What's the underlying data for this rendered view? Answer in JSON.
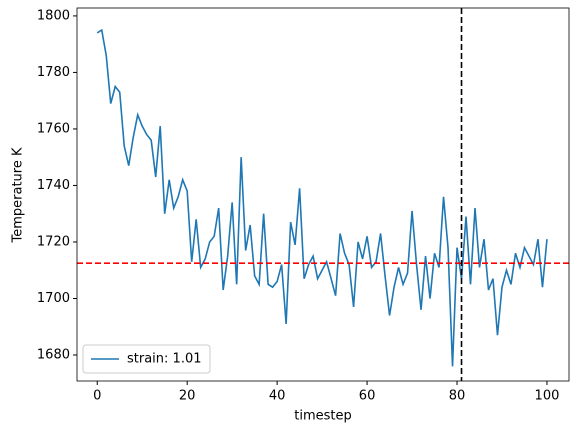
{
  "chart_data": {
    "type": "line",
    "x": [
      0,
      1,
      2,
      3,
      4,
      5,
      6,
      7,
      8,
      9,
      10,
      11,
      12,
      13,
      14,
      15,
      16,
      17,
      18,
      19,
      20,
      21,
      22,
      23,
      24,
      25,
      26,
      27,
      28,
      29,
      30,
      31,
      32,
      33,
      34,
      35,
      36,
      37,
      38,
      39,
      40,
      41,
      42,
      43,
      44,
      45,
      46,
      47,
      48,
      49,
      50,
      51,
      52,
      53,
      54,
      55,
      56,
      57,
      58,
      59,
      60,
      61,
      62,
      63,
      64,
      65,
      66,
      67,
      68,
      69,
      70,
      71,
      72,
      73,
      74,
      75,
      76,
      77,
      78,
      79,
      80,
      81,
      82,
      83,
      84,
      85,
      86,
      87,
      88,
      89,
      90,
      91,
      92,
      93,
      94,
      95,
      96,
      97,
      98,
      99,
      100
    ],
    "series": [
      {
        "name": "strain: 1.01",
        "color": "#1f77b4",
        "values": [
          1794,
          1795,
          1786,
          1769,
          1775,
          1773,
          1754,
          1747,
          1757,
          1765,
          1761,
          1758,
          1756,
          1743,
          1761,
          1730,
          1742,
          1732,
          1736,
          1742,
          1738,
          1713,
          1728,
          1711,
          1714,
          1720,
          1722,
          1732,
          1703,
          1715,
          1734,
          1705,
          1750,
          1717,
          1726,
          1708,
          1705,
          1730,
          1705,
          1704,
          1706,
          1712,
          1691,
          1727,
          1719,
          1739,
          1707,
          1712,
          1715,
          1707,
          1710,
          1713,
          1707,
          1701,
          1723,
          1716,
          1712,
          1697,
          1720,
          1714,
          1722,
          1711,
          1713,
          1723,
          1708,
          1694,
          1704,
          1711,
          1705,
          1709,
          1731,
          1712,
          1696,
          1715,
          1700,
          1716,
          1711,
          1736,
          1718,
          1676,
          1718,
          1707,
          1729,
          1705,
          1732,
          1711,
          1721,
          1703,
          1707,
          1687,
          1704,
          1710,
          1705,
          1716,
          1711,
          1718,
          1715,
          1712,
          1721,
          1704,
          1721
        ]
      }
    ],
    "reference_lines": [
      {
        "axis": "y",
        "value": 1712.5,
        "color": "#ff0000"
      },
      {
        "axis": "x",
        "value": 81,
        "color": "#000000"
      }
    ],
    "xlabel": "timestep",
    "ylabel": "Temperature K",
    "xlim": [
      -4.5,
      104.9
    ],
    "ylim": [
      1670.8,
      1802.8
    ],
    "xticks": [
      0,
      20,
      40,
      60,
      80,
      100
    ],
    "yticks": [
      1680,
      1700,
      1720,
      1740,
      1760,
      1780,
      1800
    ],
    "legend": "lower left"
  }
}
